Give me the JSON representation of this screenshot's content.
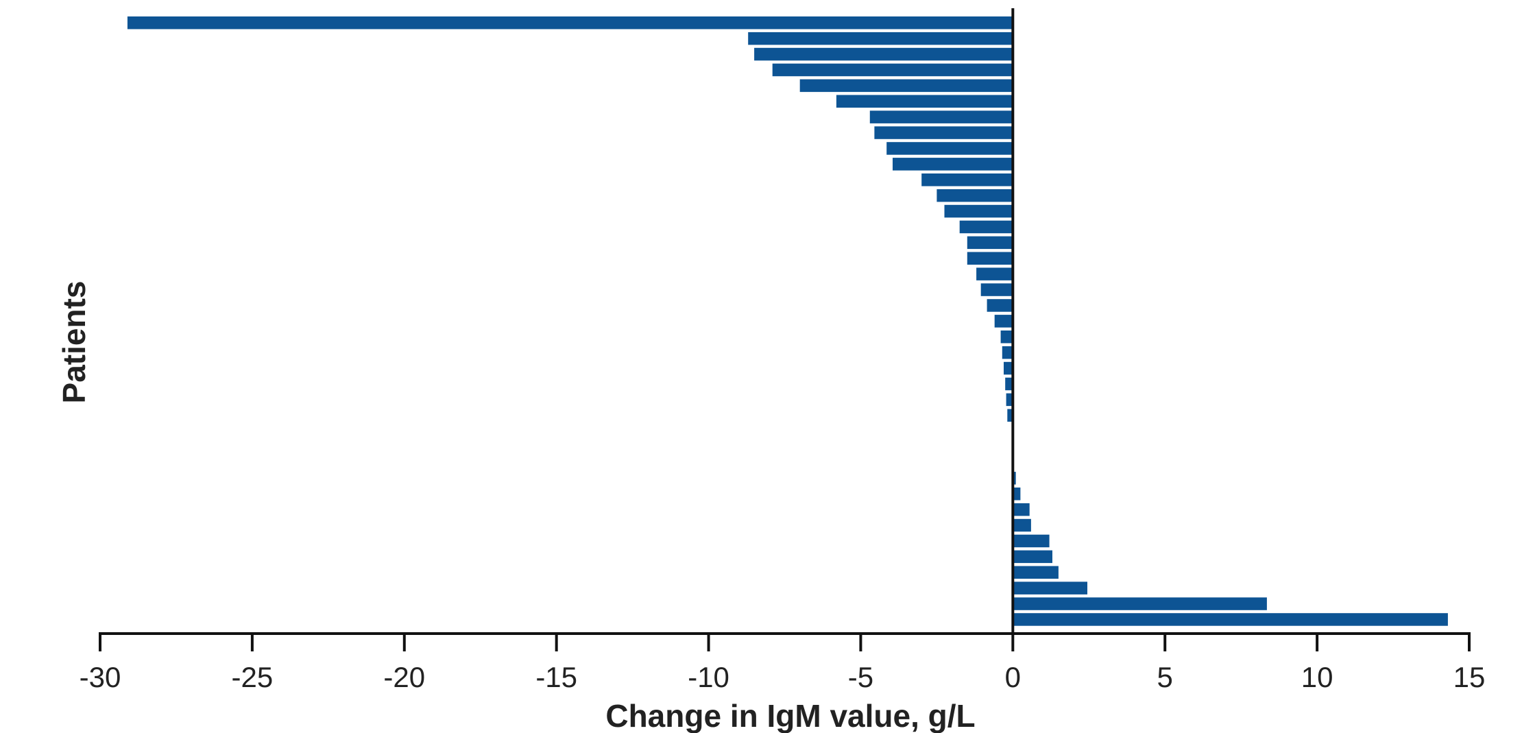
{
  "chart_data": {
    "type": "bar",
    "orientation": "horizontal",
    "title": "",
    "xlabel": "Change in IgM value, g/L",
    "ylabel": "Patients",
    "xlim": [
      -30,
      15
    ],
    "xticks": [
      -30,
      -25,
      -20,
      -15,
      -10,
      -5,
      0,
      5,
      10,
      15
    ],
    "xtick_labels": [
      "-30",
      "-25",
      "-20",
      "-15",
      "-10",
      "-5",
      "0",
      "5",
      "10",
      "15"
    ],
    "grid": false,
    "legend": "none",
    "bar_color": "#0d5494",
    "axis_color": "#111111",
    "series": [
      {
        "values": [
          -29.1,
          -8.7,
          -8.5,
          -7.9,
          -7.0,
          -5.8,
          -4.7,
          -4.55,
          -4.15,
          -3.95,
          -3.0,
          -2.5,
          -2.25,
          -1.75,
          -1.5,
          -1.5,
          -1.2,
          -1.05,
          -0.85,
          -0.6,
          -0.4,
          -0.35,
          -0.3,
          -0.25,
          -0.22,
          -0.18,
          null,
          null,
          null,
          0.1,
          0.25,
          0.55,
          0.6,
          1.2,
          1.3,
          1.5,
          2.45,
          8.35,
          14.3
        ]
      }
    ]
  }
}
